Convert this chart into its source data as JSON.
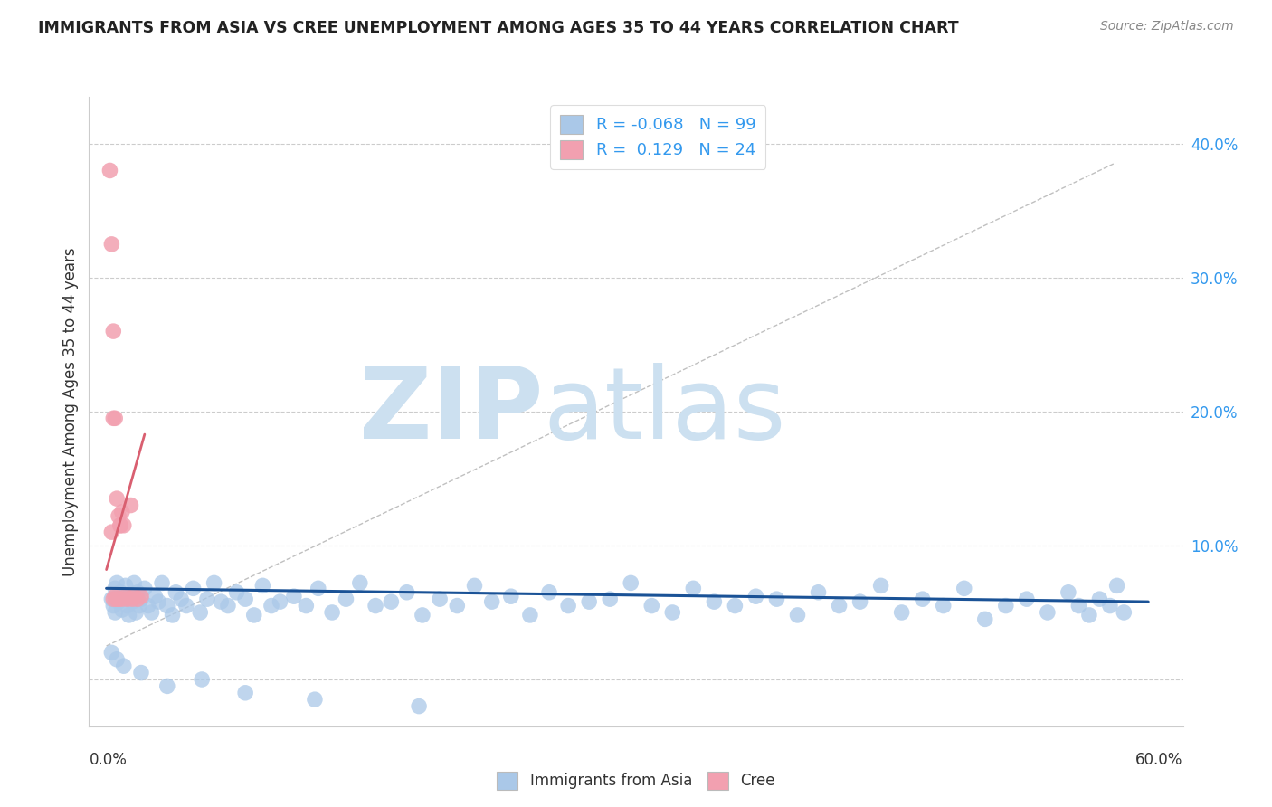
{
  "title": "IMMIGRANTS FROM ASIA VS CREE UNEMPLOYMENT AMONG AGES 35 TO 44 YEARS CORRELATION CHART",
  "source": "Source: ZipAtlas.com",
  "ylabel": "Unemployment Among Ages 35 to 44 years",
  "y_ticks": [
    0.0,
    0.1,
    0.2,
    0.3,
    0.4
  ],
  "y_tick_labels": [
    "",
    "10.0%",
    "20.0%",
    "30.0%",
    "40.0%"
  ],
  "xlim": [
    -0.01,
    0.62
  ],
  "ylim": [
    -0.035,
    0.435
  ],
  "R_blue": -0.068,
  "N_blue": 99,
  "R_pink": 0.129,
  "N_pink": 24,
  "blue_color": "#aac8e8",
  "pink_color": "#f2a0b0",
  "blue_line_color": "#1a5296",
  "pink_line_color": "#d95f70",
  "dash_line_color": "#c0c0c0",
  "watermark_zip": "ZIP",
  "watermark_atlas": "atlas",
  "watermark_color": "#cce0f0",
  "background_color": "#ffffff",
  "grid_color": "#cccccc",
  "title_color": "#222222",
  "source_color": "#888888",
  "label_color": "#333333",
  "tick_color": "#3399ee",
  "blue_scatter_x": [
    0.003,
    0.004,
    0.005,
    0.005,
    0.006,
    0.007,
    0.008,
    0.009,
    0.01,
    0.011,
    0.012,
    0.013,
    0.014,
    0.015,
    0.016,
    0.017,
    0.018,
    0.019,
    0.02,
    0.022,
    0.024,
    0.026,
    0.028,
    0.03,
    0.032,
    0.035,
    0.038,
    0.04,
    0.043,
    0.046,
    0.05,
    0.054,
    0.058,
    0.062,
    0.066,
    0.07,
    0.075,
    0.08,
    0.085,
    0.09,
    0.095,
    0.1,
    0.108,
    0.115,
    0.122,
    0.13,
    0.138,
    0.146,
    0.155,
    0.164,
    0.173,
    0.182,
    0.192,
    0.202,
    0.212,
    0.222,
    0.233,
    0.244,
    0.255,
    0.266,
    0.278,
    0.29,
    0.302,
    0.314,
    0.326,
    0.338,
    0.35,
    0.362,
    0.374,
    0.386,
    0.398,
    0.41,
    0.422,
    0.434,
    0.446,
    0.458,
    0.47,
    0.482,
    0.494,
    0.506,
    0.518,
    0.53,
    0.542,
    0.554,
    0.56,
    0.566,
    0.572,
    0.578,
    0.582,
    0.586,
    0.003,
    0.006,
    0.01,
    0.02,
    0.035,
    0.055,
    0.08,
    0.12,
    0.18
  ],
  "blue_scatter_y": [
    0.06,
    0.055,
    0.068,
    0.05,
    0.072,
    0.058,
    0.065,
    0.052,
    0.06,
    0.07,
    0.055,
    0.048,
    0.063,
    0.058,
    0.072,
    0.05,
    0.065,
    0.055,
    0.06,
    0.068,
    0.055,
    0.05,
    0.062,
    0.058,
    0.072,
    0.055,
    0.048,
    0.065,
    0.06,
    0.055,
    0.068,
    0.05,
    0.06,
    0.072,
    0.058,
    0.055,
    0.065,
    0.06,
    0.048,
    0.07,
    0.055,
    0.058,
    0.062,
    0.055,
    0.068,
    0.05,
    0.06,
    0.072,
    0.055,
    0.058,
    0.065,
    0.048,
    0.06,
    0.055,
    0.07,
    0.058,
    0.062,
    0.048,
    0.065,
    0.055,
    0.058,
    0.06,
    0.072,
    0.055,
    0.05,
    0.068,
    0.058,
    0.055,
    0.062,
    0.06,
    0.048,
    0.065,
    0.055,
    0.058,
    0.07,
    0.05,
    0.06,
    0.055,
    0.068,
    0.045,
    0.055,
    0.06,
    0.05,
    0.065,
    0.055,
    0.048,
    0.06,
    0.055,
    0.07,
    0.05,
    0.02,
    0.015,
    0.01,
    0.005,
    -0.005,
    0.0,
    -0.01,
    -0.015,
    -0.02
  ],
  "pink_scatter_x": [
    0.002,
    0.003,
    0.003,
    0.004,
    0.004,
    0.005,
    0.005,
    0.006,
    0.007,
    0.007,
    0.008,
    0.009,
    0.009,
    0.01,
    0.011,
    0.012,
    0.014,
    0.016,
    0.018,
    0.02,
    0.004,
    0.006,
    0.008,
    0.015
  ],
  "pink_scatter_y": [
    0.38,
    0.11,
    0.325,
    0.26,
    0.06,
    0.195,
    0.062,
    0.135,
    0.122,
    0.06,
    0.115,
    0.06,
    0.125,
    0.115,
    0.062,
    0.06,
    0.13,
    0.062,
    0.06,
    0.062,
    0.195,
    0.06,
    0.115,
    0.06
  ],
  "blue_trend": [
    0.0,
    0.6,
    0.068,
    0.058
  ],
  "pink_trend_x": [
    0.0,
    0.022
  ],
  "pink_trend_y": [
    0.082,
    0.183
  ],
  "dash_trend": [
    0.0,
    0.58,
    0.025,
    0.385
  ]
}
